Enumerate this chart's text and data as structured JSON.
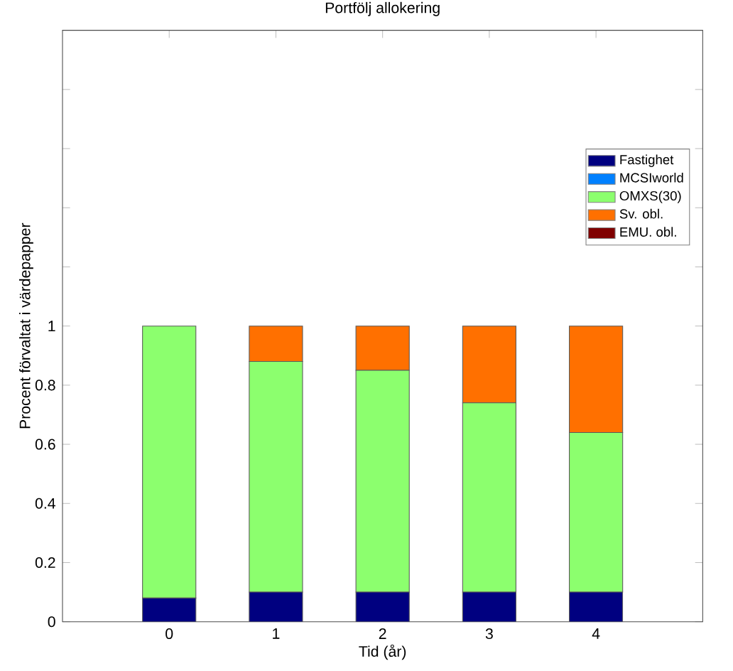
{
  "chart_data": {
    "type": "bar",
    "stacked": true,
    "title": "Portfölj allokering",
    "xlabel": "Tid (år)",
    "ylabel": "Procent förvaltat i värdepapper",
    "x": [
      0,
      1,
      2,
      3,
      4
    ],
    "xlim": [
      -1,
      5
    ],
    "xticks": [
      0,
      1,
      2,
      3,
      4
    ],
    "ylim": [
      0,
      2
    ],
    "yticks": [
      0,
      0.2,
      0.4,
      0.6,
      0.8,
      1,
      {
        "value": 1.2,
        "label": null
      },
      {
        "value": 1.4,
        "label": null
      },
      {
        "value": 1.6,
        "label": null
      },
      {
        "value": 1.8,
        "label": null
      }
    ],
    "legend": "right",
    "grid": false,
    "series": [
      {
        "name": "Fastighet",
        "color": "#000080",
        "values": [
          0.08,
          0.1,
          0.1,
          0.1,
          0.1
        ]
      },
      {
        "name": "MCSIworld",
        "color": "#0080ff",
        "values": [
          0,
          0,
          0,
          0,
          0
        ]
      },
      {
        "name": "OMXS(30)",
        "color": "#8cff6e",
        "values": [
          0.92,
          0.78,
          0.75,
          0.64,
          0.54
        ]
      },
      {
        "name": "Sv. obl.",
        "color": "#ff7000",
        "values": [
          0,
          0.12,
          0.15,
          0.26,
          0.36
        ]
      },
      {
        "name": "EMU. obl.",
        "color": "#800000",
        "values": [
          0,
          0,
          0,
          0,
          0
        ]
      }
    ]
  }
}
